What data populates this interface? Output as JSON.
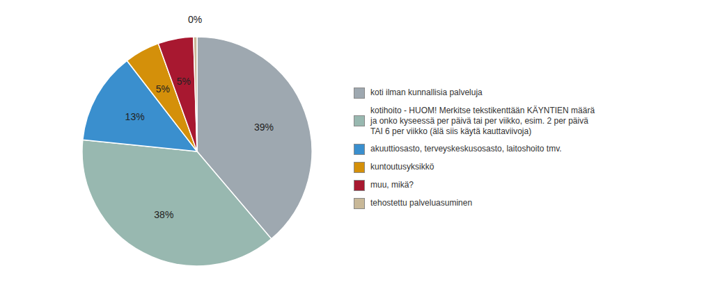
{
  "chart_data": {
    "type": "pie",
    "categories": [
      "koti ilman kunnallisia palveluja",
      "kotihoito - HUOM! Merkitse tekstikenttään KÄYNTIEN määrä\nja onko kyseessä per päivä tai per viikko, esim. 2 per päivä\nTAI 6 per viikko (älä siis käytä kauttaviivoja)",
      "akuuttiosasto, terveyskeskusosasto, laitoshoito tmv.",
      "kuntoutusyksikkö",
      "muu, mikä?",
      "tehostettu palveluasuminen"
    ],
    "values": [
      39,
      38,
      13,
      5,
      5,
      0.5
    ],
    "value_labels": [
      "39%",
      "38%",
      "13%",
      "5%",
      "5%",
      "0%"
    ],
    "colors": [
      "#9ea8b0",
      "#98b8b0",
      "#3a8fce",
      "#d4900a",
      "#a81830",
      "#c8b898"
    ],
    "data_labels": true,
    "legend": "right"
  }
}
